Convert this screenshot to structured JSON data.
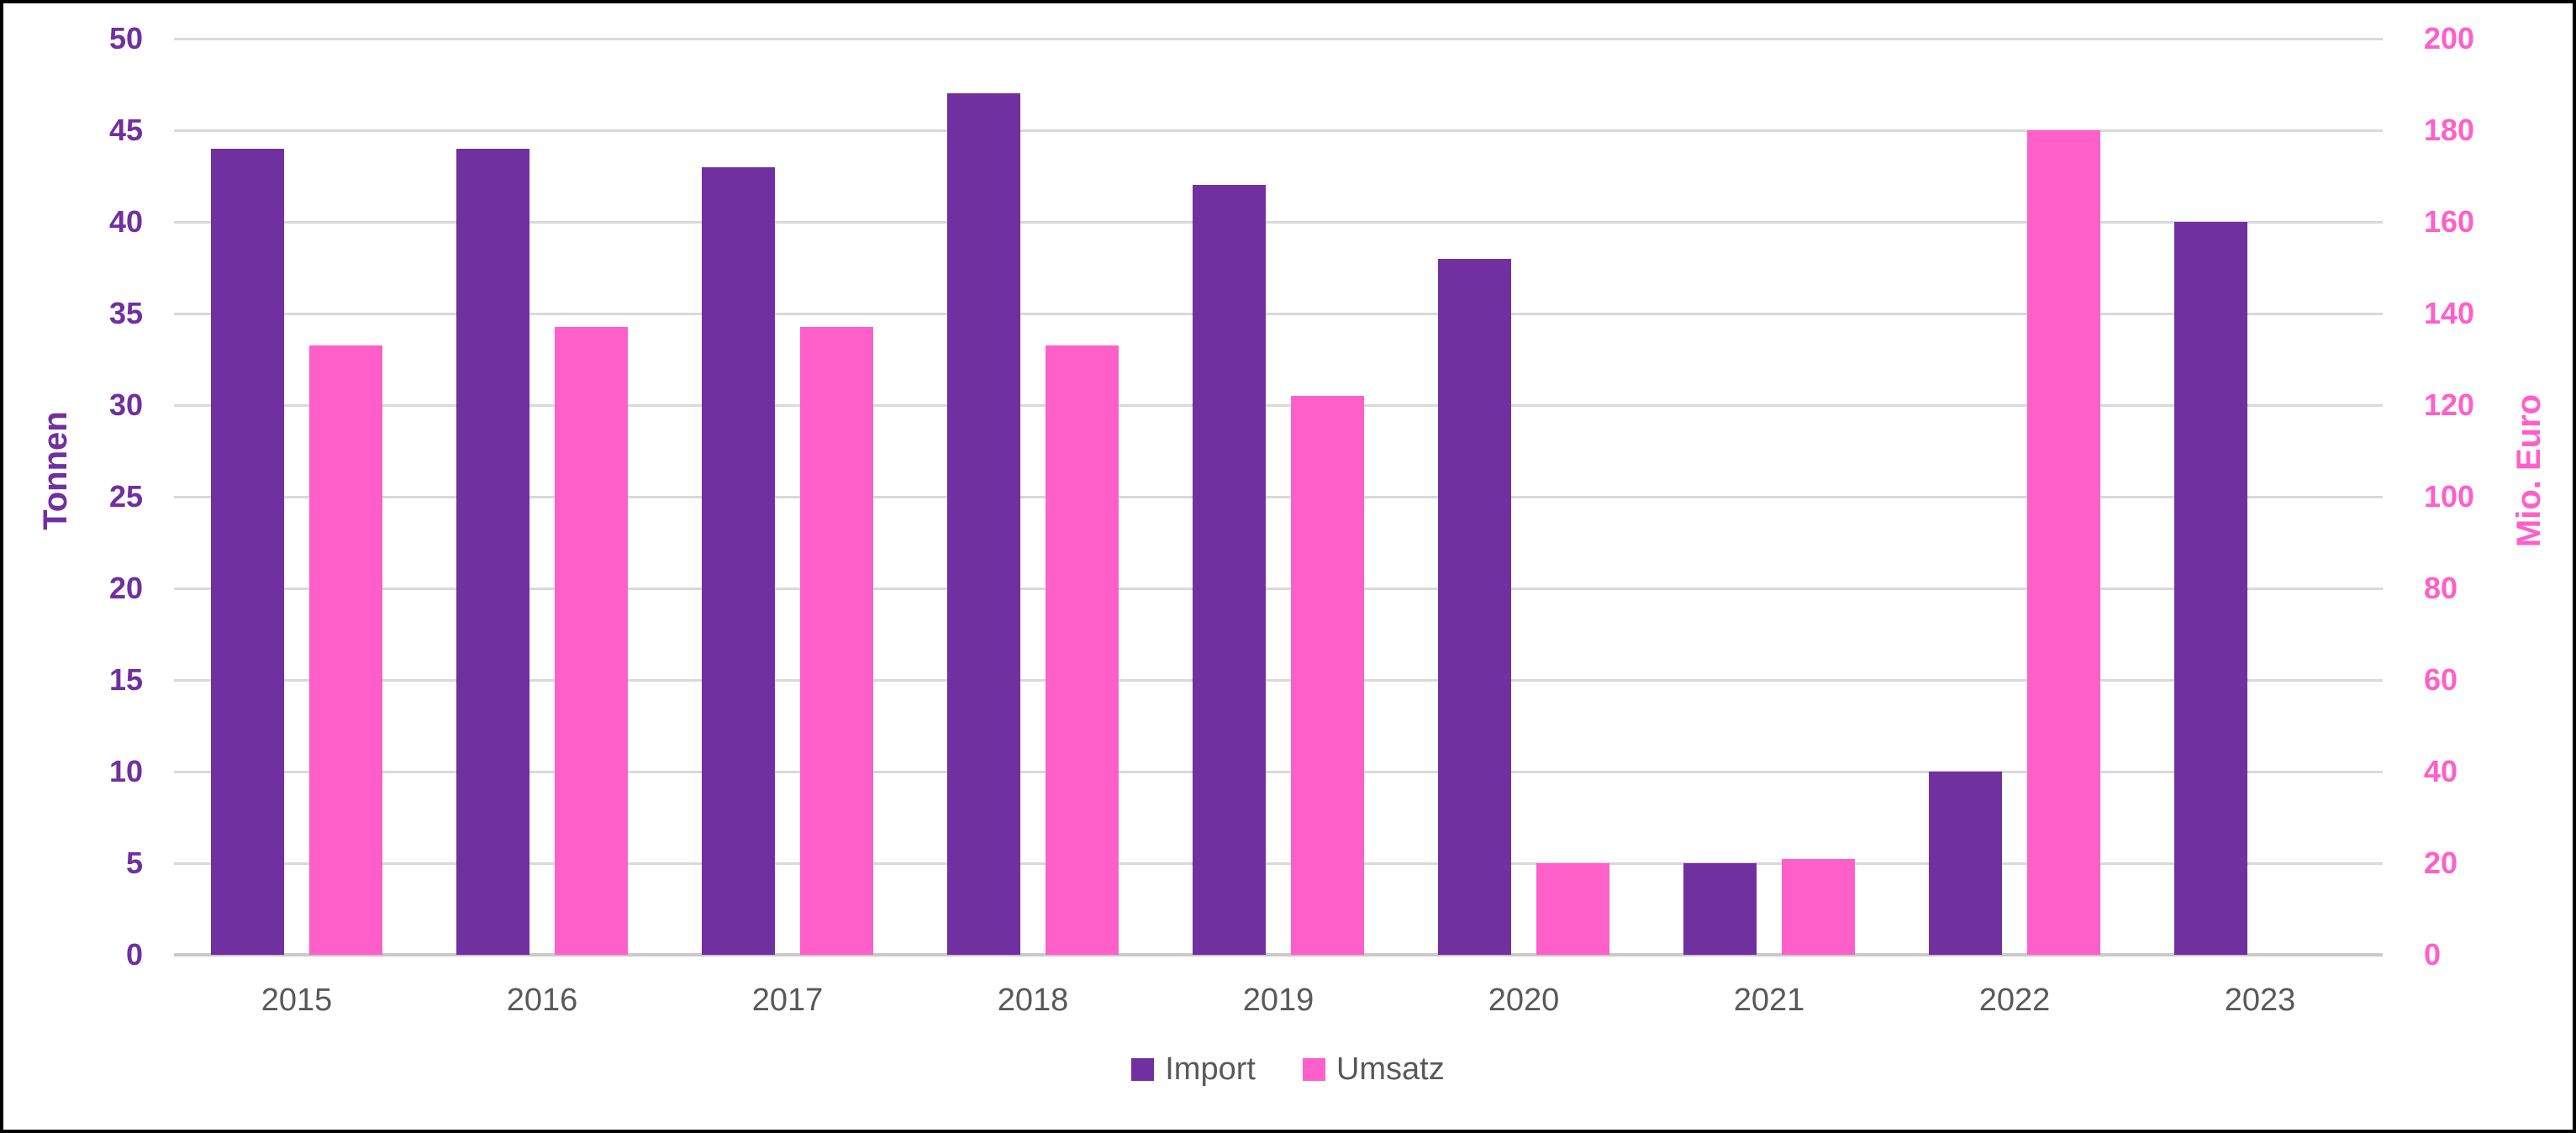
{
  "chart_data": {
    "type": "bar",
    "subtype": "grouped-dual-axis",
    "categories": [
      "2015",
      "2016",
      "2017",
      "2018",
      "2019",
      "2020",
      "2021",
      "2022",
      "2023"
    ],
    "series": [
      {
        "name": "Import",
        "axis": "left",
        "color": "#7030A0",
        "values": [
          44,
          44,
          43,
          47,
          42,
          38,
          5,
          10,
          40
        ]
      },
      {
        "name": "Umsatz",
        "axis": "right",
        "color": "#FF5FC8",
        "values": [
          133,
          137,
          137,
          133,
          122,
          20,
          21,
          180,
          null
        ]
      }
    ],
    "left_axis": {
      "title": "Tonnen",
      "min": 0,
      "max": 50,
      "step": 5,
      "color": "#7030A0"
    },
    "right_axis": {
      "title": "Mio. Euro",
      "min": 0,
      "max": 200,
      "step": 20,
      "color": "#FF5FC8"
    },
    "legend": {
      "position": "bottom",
      "entries": [
        "Import",
        "Umsatz"
      ]
    },
    "grid": true,
    "gridline_color": "#D9D9D9",
    "category_label_color": "#595959",
    "legend_text_color": "#595959"
  }
}
